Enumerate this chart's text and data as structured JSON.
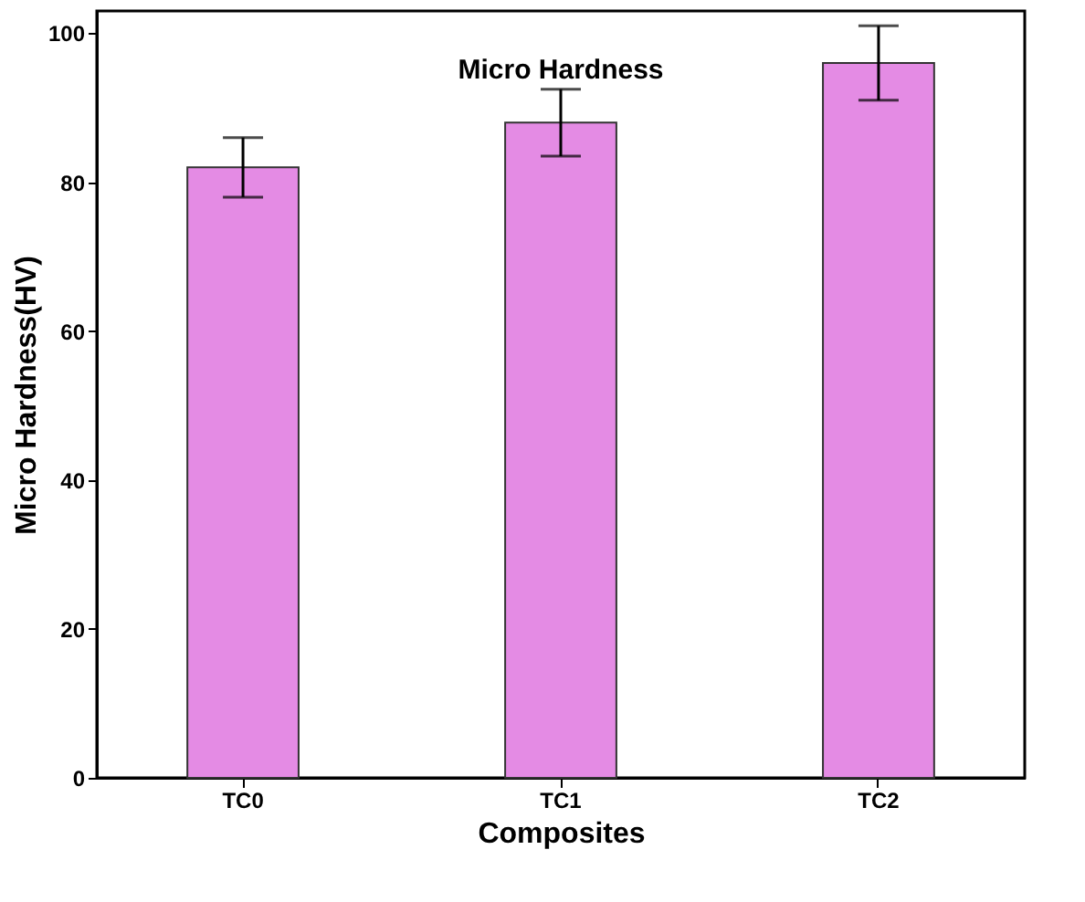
{
  "chart_data": {
    "type": "bar",
    "title": "Micro Hardness",
    "xlabel": "Composites",
    "ylabel": "Micro Hardness(HV)",
    "categories": [
      "TC0",
      "TC1",
      "TC2"
    ],
    "series": [
      {
        "color": "#e48be4",
        "values": [
          82,
          88,
          96
        ],
        "errors": [
          4,
          4.5,
          5
        ]
      }
    ],
    "ylim": [
      0,
      103
    ],
    "yticks": [
      0,
      20,
      40,
      60,
      80,
      100
    ],
    "grid": false
  }
}
